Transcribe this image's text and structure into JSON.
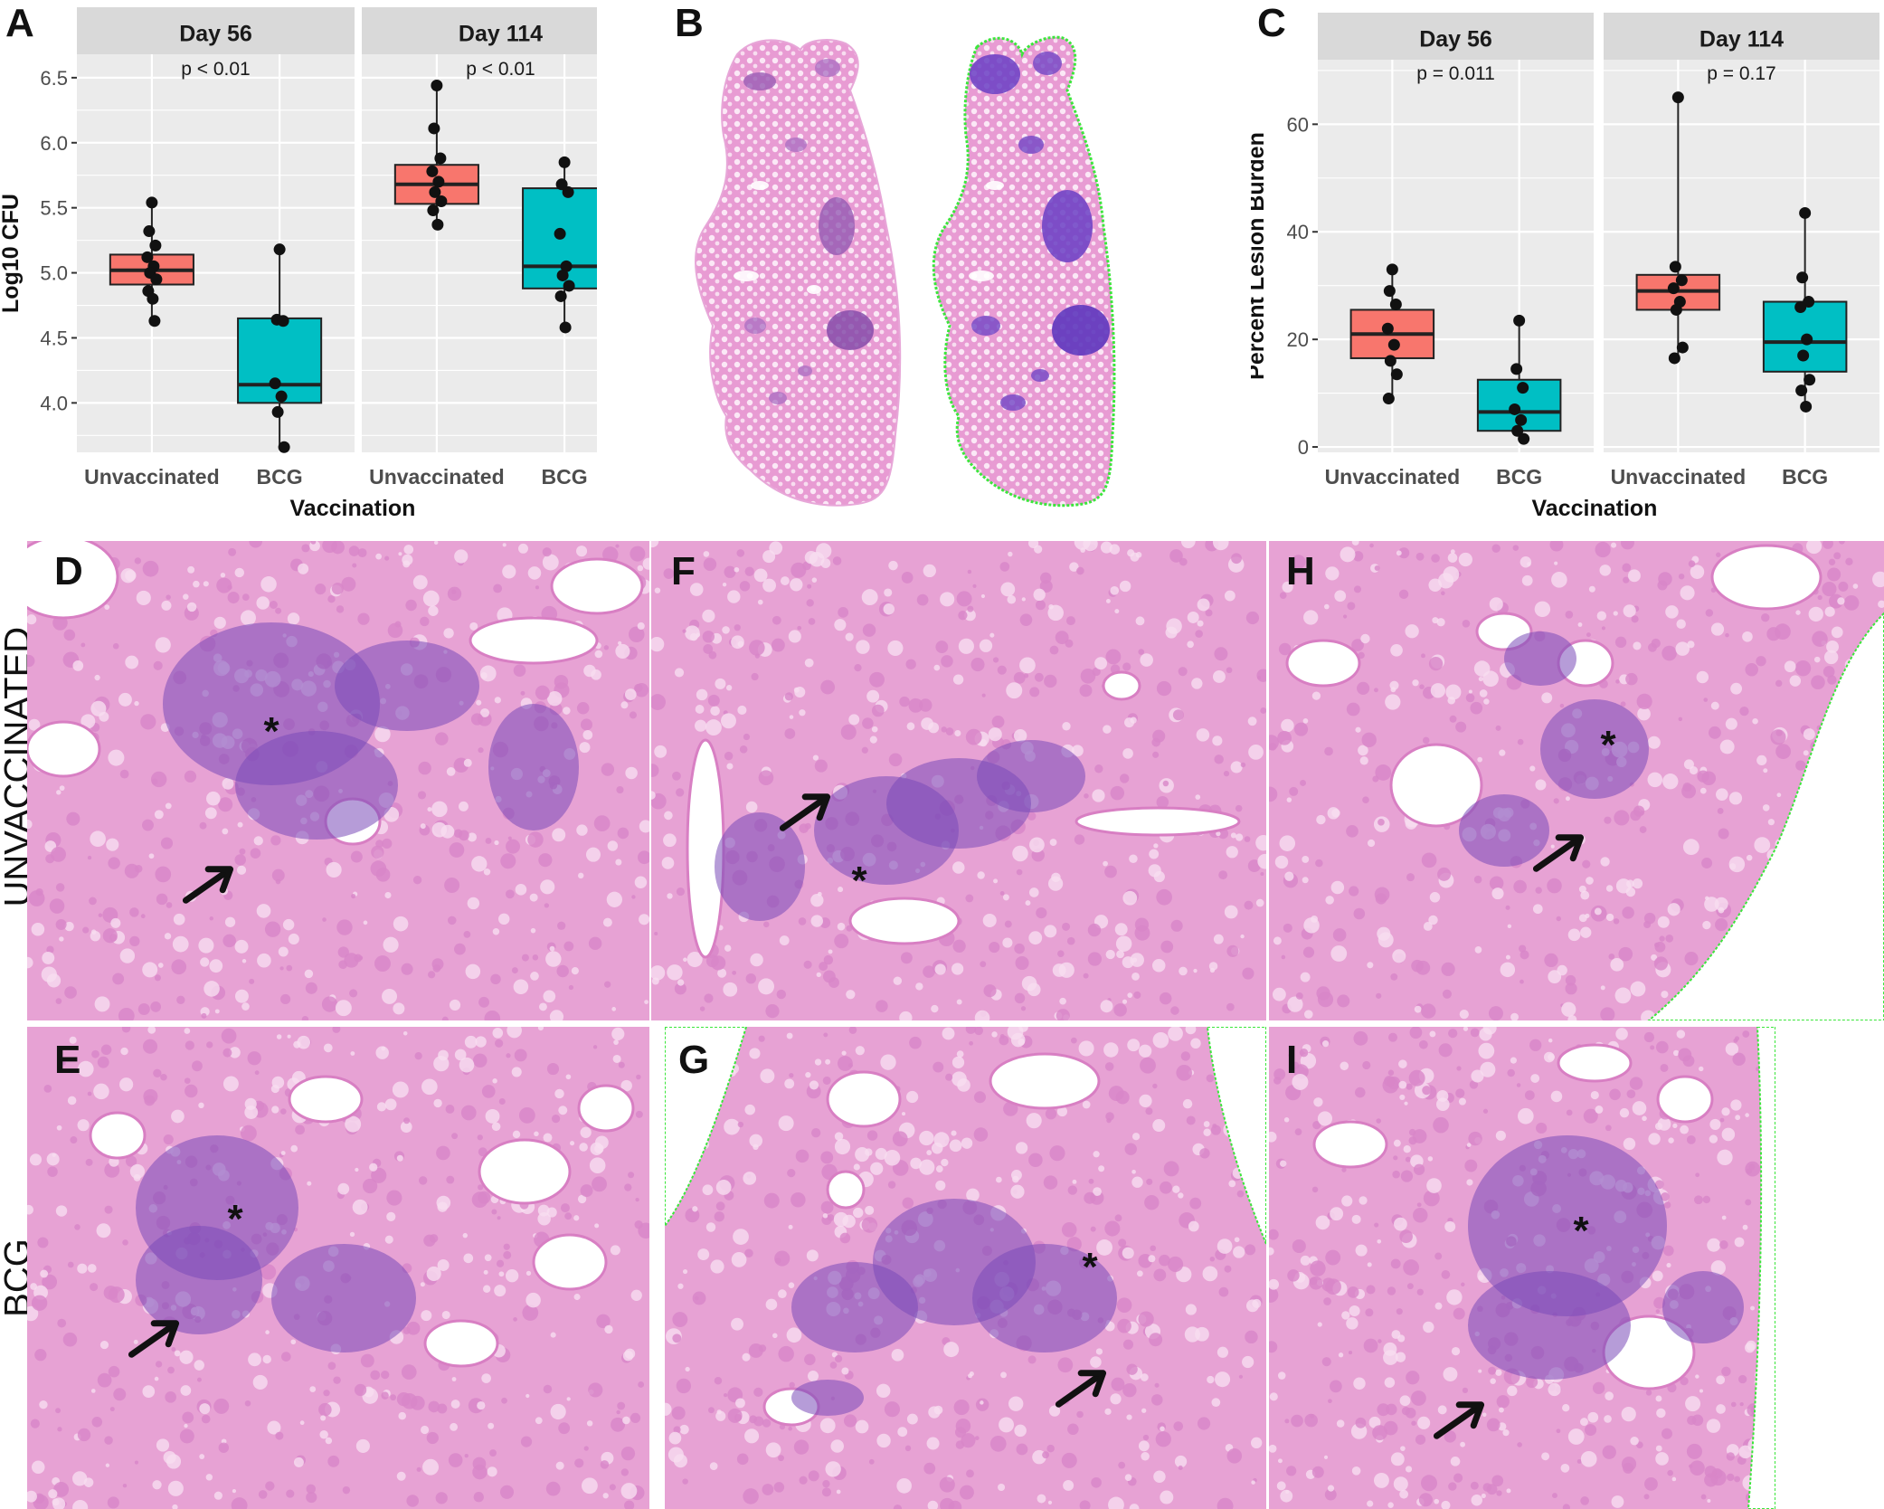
{
  "panel_letters": {
    "a": "A",
    "b": "B",
    "c": "C",
    "d": "D",
    "e": "E",
    "f": "F",
    "g": "G",
    "h": "H",
    "i": "I"
  },
  "row_labels": {
    "top": "UNVACCINATED",
    "bottom": "BCG"
  },
  "annotations": {
    "asterisk": "*",
    "arrow": "arrow"
  },
  "colors": {
    "unvaccinated": "#F8766D",
    "bcg": "#00BFC4",
    "panel_bg": "#EBEBEB",
    "strip_bg": "#D9D9D9",
    "tissue": "#E58BCB",
    "lesion": "#7A4BB8",
    "outline": "#3CE63C"
  },
  "chart_data": [
    {
      "type": "box",
      "panel": "A",
      "ylabel": "Log10 CFU",
      "xlabel": "Vaccination",
      "ylim": [
        3.62,
        6.68
      ],
      "yticks": [
        "4.0",
        "4.5",
        "5.0",
        "5.5",
        "6.0",
        "6.5"
      ],
      "categories": [
        "Unvaccinated",
        "BCG"
      ],
      "facets": [
        {
          "strip": "Day 56",
          "pvalue": "p < 0.01",
          "groups": [
            {
              "name": "Unvaccinated",
              "q1": 4.91,
              "median": 5.02,
              "q3": 5.14,
              "whisker_low": 4.63,
              "whisker_high": 5.54,
              "points": [
                5.54,
                5.32,
                5.21,
                5.12,
                5.05,
                5.0,
                4.95,
                4.86,
                4.8,
                4.63
              ]
            },
            {
              "name": "BCG",
              "q1": 4.0,
              "median": 4.14,
              "q3": 4.65,
              "whisker_low": 3.66,
              "whisker_high": 5.18,
              "points": [
                5.18,
                4.64,
                4.63,
                4.15,
                4.05,
                3.93,
                3.66
              ]
            }
          ]
        },
        {
          "strip": "Day 114",
          "pvalue": "p < 0.01",
          "groups": [
            {
              "name": "Unvaccinated",
              "q1": 5.53,
              "median": 5.68,
              "q3": 5.83,
              "whisker_low": 5.37,
              "whisker_high": 6.44,
              "points": [
                6.44,
                6.11,
                5.88,
                5.78,
                5.7,
                5.62,
                5.55,
                5.48,
                5.37
              ]
            },
            {
              "name": "BCG",
              "q1": 4.88,
              "median": 5.05,
              "q3": 5.65,
              "whisker_low": 4.58,
              "whisker_high": 5.85,
              "points": [
                5.85,
                5.68,
                5.62,
                5.3,
                5.05,
                4.98,
                4.9,
                4.82,
                4.58
              ]
            }
          ]
        }
      ]
    },
    {
      "type": "box",
      "panel": "C",
      "ylabel": "Percent Lesion Burden",
      "xlabel": "Vaccination",
      "ylim": [
        -1,
        72
      ],
      "yticks": [
        "0",
        "20",
        "40",
        "60"
      ],
      "categories": [
        "Unvaccinated",
        "BCG"
      ],
      "facets": [
        {
          "strip": "Day 56",
          "pvalue": "p = 0.011",
          "groups": [
            {
              "name": "Unvaccinated",
              "q1": 16.5,
              "median": 21,
              "q3": 25.5,
              "whisker_low": 9,
              "whisker_high": 33,
              "points": [
                33,
                29,
                26.5,
                22,
                19,
                16,
                13.5,
                9
              ]
            },
            {
              "name": "BCG",
              "q1": 3,
              "median": 6.5,
              "q3": 12.5,
              "whisker_low": 1.5,
              "whisker_high": 23.5,
              "points": [
                23.5,
                14.5,
                11,
                7,
                5,
                3,
                1.5
              ]
            }
          ]
        },
        {
          "strip": "Day 114",
          "pvalue": "p = 0.17",
          "groups": [
            {
              "name": "Unvaccinated",
              "q1": 25.5,
              "median": 29,
              "q3": 32,
              "whisker_low": 16.5,
              "whisker_high": 65,
              "points": [
                65,
                33.5,
                31,
                29.5,
                27,
                25.5,
                18.5,
                16.5
              ]
            },
            {
              "name": "BCG",
              "q1": 14,
              "median": 19.5,
              "q3": 27,
              "whisker_low": 7.5,
              "whisker_high": 43.5,
              "points": [
                43.5,
                31.5,
                27,
                26,
                20,
                17,
                12.5,
                10.5,
                7.5
              ]
            }
          ]
        }
      ]
    }
  ]
}
